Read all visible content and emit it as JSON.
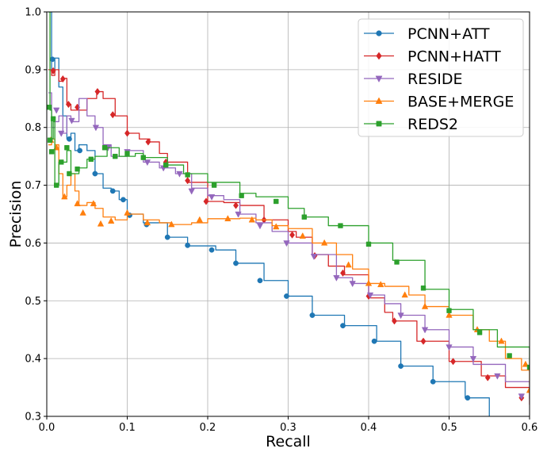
{
  "chart_data": {
    "type": "line",
    "title": "",
    "xlabel": "Recall",
    "ylabel": "Precision",
    "xlim": [
      0.0,
      0.6
    ],
    "ylim": [
      0.3,
      1.0
    ],
    "xticks": [
      "0.0",
      "0.1",
      "0.2",
      "0.3",
      "0.4",
      "0.5",
      "0.6"
    ],
    "yticks": [
      "0.3",
      "0.4",
      "0.5",
      "0.6",
      "0.7",
      "0.8",
      "0.9",
      "1.0"
    ],
    "grid": true,
    "legend_position": "top-right",
    "series": [
      {
        "name": "PCNN+ATT",
        "color": "#1f77b4",
        "marker": "circle",
        "points": [
          [
            0.002,
            1.0
          ],
          [
            0.006,
            0.9
          ],
          [
            0.01,
            0.92
          ],
          [
            0.015,
            0.87
          ],
          [
            0.02,
            0.82
          ],
          [
            0.025,
            0.78
          ],
          [
            0.03,
            0.79
          ],
          [
            0.035,
            0.76
          ],
          [
            0.04,
            0.77
          ],
          [
            0.05,
            0.76
          ],
          [
            0.06,
            0.72
          ],
          [
            0.07,
            0.695
          ],
          [
            0.08,
            0.69
          ],
          [
            0.09,
            0.675
          ],
          [
            0.1,
            0.65
          ],
          [
            0.12,
            0.635
          ],
          [
            0.15,
            0.61
          ],
          [
            0.175,
            0.595
          ],
          [
            0.21,
            0.588
          ],
          [
            0.235,
            0.565
          ],
          [
            0.27,
            0.535
          ],
          [
            0.3,
            0.508
          ],
          [
            0.33,
            0.475
          ],
          [
            0.37,
            0.457
          ],
          [
            0.41,
            0.43
          ],
          [
            0.44,
            0.387
          ],
          [
            0.48,
            0.36
          ],
          [
            0.52,
            0.332
          ],
          [
            0.55,
            0.3
          ]
        ],
        "marker_points": [
          [
            0.007,
            0.918
          ],
          [
            0.028,
            0.78
          ],
          [
            0.041,
            0.76
          ],
          [
            0.06,
            0.72
          ],
          [
            0.082,
            0.69
          ],
          [
            0.095,
            0.675
          ],
          [
            0.103,
            0.648
          ],
          [
            0.124,
            0.632
          ],
          [
            0.15,
            0.61
          ],
          [
            0.175,
            0.596
          ],
          [
            0.205,
            0.588
          ],
          [
            0.235,
            0.565
          ],
          [
            0.265,
            0.535
          ],
          [
            0.298,
            0.508
          ],
          [
            0.33,
            0.475
          ],
          [
            0.368,
            0.457
          ],
          [
            0.407,
            0.43
          ],
          [
            0.44,
            0.387
          ],
          [
            0.48,
            0.36
          ],
          [
            0.523,
            0.332
          ]
        ]
      },
      {
        "name": "PCNN+HATT",
        "color": "#d62728",
        "marker": "diamond",
        "points": [
          [
            0.002,
            0.9
          ],
          [
            0.006,
            0.89
          ],
          [
            0.01,
            0.9
          ],
          [
            0.015,
            0.88
          ],
          [
            0.02,
            0.885
          ],
          [
            0.025,
            0.84
          ],
          [
            0.03,
            0.83
          ],
          [
            0.04,
            0.83
          ],
          [
            0.05,
            0.85
          ],
          [
            0.062,
            0.862
          ],
          [
            0.07,
            0.85
          ],
          [
            0.085,
            0.82
          ],
          [
            0.1,
            0.79
          ],
          [
            0.115,
            0.78
          ],
          [
            0.128,
            0.775
          ],
          [
            0.14,
            0.755
          ],
          [
            0.15,
            0.74
          ],
          [
            0.175,
            0.705
          ],
          [
            0.2,
            0.672
          ],
          [
            0.22,
            0.67
          ],
          [
            0.24,
            0.665
          ],
          [
            0.27,
            0.64
          ],
          [
            0.3,
            0.62
          ],
          [
            0.31,
            0.61
          ],
          [
            0.33,
            0.58
          ],
          [
            0.35,
            0.56
          ],
          [
            0.37,
            0.545
          ],
          [
            0.4,
            0.505
          ],
          [
            0.42,
            0.48
          ],
          [
            0.43,
            0.465
          ],
          [
            0.46,
            0.43
          ],
          [
            0.5,
            0.395
          ],
          [
            0.54,
            0.37
          ],
          [
            0.57,
            0.35
          ],
          [
            0.6,
            0.32
          ]
        ],
        "marker_points": [
          [
            0.008,
            0.898
          ],
          [
            0.02,
            0.884
          ],
          [
            0.027,
            0.84
          ],
          [
            0.038,
            0.835
          ],
          [
            0.063,
            0.862
          ],
          [
            0.082,
            0.822
          ],
          [
            0.1,
            0.79
          ],
          [
            0.126,
            0.775
          ],
          [
            0.148,
            0.74
          ],
          [
            0.175,
            0.708
          ],
          [
            0.198,
            0.672
          ],
          [
            0.235,
            0.665
          ],
          [
            0.27,
            0.64
          ],
          [
            0.305,
            0.614
          ],
          [
            0.333,
            0.578
          ],
          [
            0.368,
            0.548
          ],
          [
            0.4,
            0.508
          ],
          [
            0.432,
            0.465
          ],
          [
            0.468,
            0.43
          ],
          [
            0.505,
            0.395
          ],
          [
            0.548,
            0.367
          ],
          [
            0.59,
            0.332
          ]
        ]
      },
      {
        "name": "RESIDE",
        "color": "#9467bd",
        "marker": "triangle-down",
        "points": [
          [
            0.002,
            0.86
          ],
          [
            0.006,
            0.8
          ],
          [
            0.01,
            0.81
          ],
          [
            0.015,
            0.82
          ],
          [
            0.02,
            0.79
          ],
          [
            0.025,
            0.82
          ],
          [
            0.03,
            0.81
          ],
          [
            0.04,
            0.85
          ],
          [
            0.05,
            0.82
          ],
          [
            0.06,
            0.8
          ],
          [
            0.07,
            0.77
          ],
          [
            0.08,
            0.75
          ],
          [
            0.1,
            0.76
          ],
          [
            0.12,
            0.74
          ],
          [
            0.14,
            0.73
          ],
          [
            0.16,
            0.72
          ],
          [
            0.18,
            0.695
          ],
          [
            0.2,
            0.682
          ],
          [
            0.22,
            0.675
          ],
          [
            0.24,
            0.65
          ],
          [
            0.26,
            0.635
          ],
          [
            0.28,
            0.62
          ],
          [
            0.3,
            0.6
          ],
          [
            0.33,
            0.58
          ],
          [
            0.36,
            0.54
          ],
          [
            0.38,
            0.53
          ],
          [
            0.4,
            0.51
          ],
          [
            0.42,
            0.495
          ],
          [
            0.44,
            0.475
          ],
          [
            0.47,
            0.45
          ],
          [
            0.5,
            0.42
          ],
          [
            0.53,
            0.39
          ],
          [
            0.57,
            0.36
          ],
          [
            0.6,
            0.33
          ]
        ],
        "marker_points": [
          [
            0.012,
            0.83
          ],
          [
            0.018,
            0.79
          ],
          [
            0.031,
            0.812
          ],
          [
            0.061,
            0.8
          ],
          [
            0.076,
            0.765
          ],
          [
            0.1,
            0.758
          ],
          [
            0.125,
            0.74
          ],
          [
            0.145,
            0.73
          ],
          [
            0.165,
            0.72
          ],
          [
            0.18,
            0.69
          ],
          [
            0.205,
            0.68
          ],
          [
            0.238,
            0.65
          ],
          [
            0.265,
            0.63
          ],
          [
            0.298,
            0.6
          ],
          [
            0.332,
            0.577
          ],
          [
            0.36,
            0.54
          ],
          [
            0.38,
            0.53
          ],
          [
            0.402,
            0.51
          ],
          [
            0.44,
            0.475
          ],
          [
            0.47,
            0.45
          ],
          [
            0.5,
            0.42
          ],
          [
            0.53,
            0.4
          ],
          [
            0.56,
            0.37
          ],
          [
            0.59,
            0.335
          ]
        ]
      },
      {
        "name": "BASE+MERGE",
        "color": "#ff7f0e",
        "marker": "triangle-up",
        "points": [
          [
            0.002,
            0.77
          ],
          [
            0.006,
            0.78
          ],
          [
            0.01,
            0.77
          ],
          [
            0.015,
            0.72
          ],
          [
            0.02,
            0.68
          ],
          [
            0.025,
            0.7
          ],
          [
            0.03,
            0.72
          ],
          [
            0.035,
            0.69
          ],
          [
            0.04,
            0.665
          ],
          [
            0.05,
            0.67
          ],
          [
            0.06,
            0.66
          ],
          [
            0.07,
            0.645
          ],
          [
            0.085,
            0.64
          ],
          [
            0.1,
            0.65
          ],
          [
            0.12,
            0.64
          ],
          [
            0.14,
            0.635
          ],
          [
            0.155,
            0.632
          ],
          [
            0.18,
            0.635
          ],
          [
            0.2,
            0.642
          ],
          [
            0.24,
            0.643
          ],
          [
            0.26,
            0.64
          ],
          [
            0.28,
            0.63
          ],
          [
            0.3,
            0.625
          ],
          [
            0.33,
            0.6
          ],
          [
            0.36,
            0.58
          ],
          [
            0.38,
            0.555
          ],
          [
            0.4,
            0.53
          ],
          [
            0.42,
            0.525
          ],
          [
            0.45,
            0.51
          ],
          [
            0.47,
            0.49
          ],
          [
            0.5,
            0.475
          ],
          [
            0.53,
            0.45
          ],
          [
            0.55,
            0.43
          ],
          [
            0.57,
            0.4
          ],
          [
            0.59,
            0.38
          ],
          [
            0.6,
            0.355
          ]
        ],
        "marker_points": [
          [
            0.005,
            0.778
          ],
          [
            0.012,
            0.765
          ],
          [
            0.022,
            0.68
          ],
          [
            0.038,
            0.668
          ],
          [
            0.045,
            0.652
          ],
          [
            0.058,
            0.668
          ],
          [
            0.067,
            0.633
          ],
          [
            0.08,
            0.638
          ],
          [
            0.1,
            0.652
          ],
          [
            0.125,
            0.635
          ],
          [
            0.155,
            0.632
          ],
          [
            0.19,
            0.64
          ],
          [
            0.225,
            0.642
          ],
          [
            0.255,
            0.64
          ],
          [
            0.285,
            0.628
          ],
          [
            0.318,
            0.612
          ],
          [
            0.345,
            0.6
          ],
          [
            0.375,
            0.562
          ],
          [
            0.4,
            0.53
          ],
          [
            0.415,
            0.528
          ],
          [
            0.445,
            0.51
          ],
          [
            0.47,
            0.49
          ],
          [
            0.5,
            0.475
          ],
          [
            0.535,
            0.45
          ],
          [
            0.565,
            0.43
          ],
          [
            0.595,
            0.39
          ],
          [
            0.6,
            0.345
          ]
        ]
      },
      {
        "name": "REDS2",
        "color": "#2ca02c",
        "marker": "square",
        "points": [
          [
            0.002,
            1.0
          ],
          [
            0.004,
            0.83
          ],
          [
            0.006,
            0.78
          ],
          [
            0.008,
            0.81
          ],
          [
            0.01,
            0.7
          ],
          [
            0.015,
            0.74
          ],
          [
            0.02,
            0.74
          ],
          [
            0.025,
            0.76
          ],
          [
            0.03,
            0.72
          ],
          [
            0.04,
            0.73
          ],
          [
            0.05,
            0.745
          ],
          [
            0.06,
            0.75
          ],
          [
            0.075,
            0.765
          ],
          [
            0.09,
            0.75
          ],
          [
            0.11,
            0.755
          ],
          [
            0.12,
            0.748
          ],
          [
            0.15,
            0.735
          ],
          [
            0.17,
            0.72
          ],
          [
            0.2,
            0.705
          ],
          [
            0.24,
            0.686
          ],
          [
            0.26,
            0.68
          ],
          [
            0.3,
            0.66
          ],
          [
            0.32,
            0.645
          ],
          [
            0.35,
            0.63
          ],
          [
            0.4,
            0.6
          ],
          [
            0.43,
            0.57
          ],
          [
            0.47,
            0.52
          ],
          [
            0.5,
            0.485
          ],
          [
            0.53,
            0.45
          ],
          [
            0.56,
            0.42
          ],
          [
            0.6,
            0.385
          ]
        ],
        "marker_points": [
          [
            0.003,
            0.835
          ],
          [
            0.004,
            0.778
          ],
          [
            0.006,
            0.758
          ],
          [
            0.008,
            0.815
          ],
          [
            0.012,
            0.7
          ],
          [
            0.018,
            0.74
          ],
          [
            0.025,
            0.765
          ],
          [
            0.028,
            0.72
          ],
          [
            0.038,
            0.728
          ],
          [
            0.055,
            0.745
          ],
          [
            0.072,
            0.765
          ],
          [
            0.085,
            0.75
          ],
          [
            0.1,
            0.755
          ],
          [
            0.12,
            0.748
          ],
          [
            0.148,
            0.735
          ],
          [
            0.175,
            0.718
          ],
          [
            0.208,
            0.7
          ],
          [
            0.242,
            0.682
          ],
          [
            0.285,
            0.672
          ],
          [
            0.32,
            0.645
          ],
          [
            0.365,
            0.63
          ],
          [
            0.4,
            0.598
          ],
          [
            0.435,
            0.567
          ],
          [
            0.468,
            0.522
          ],
          [
            0.5,
            0.483
          ],
          [
            0.538,
            0.445
          ],
          [
            0.575,
            0.405
          ],
          [
            0.6,
            0.385
          ]
        ]
      }
    ]
  }
}
